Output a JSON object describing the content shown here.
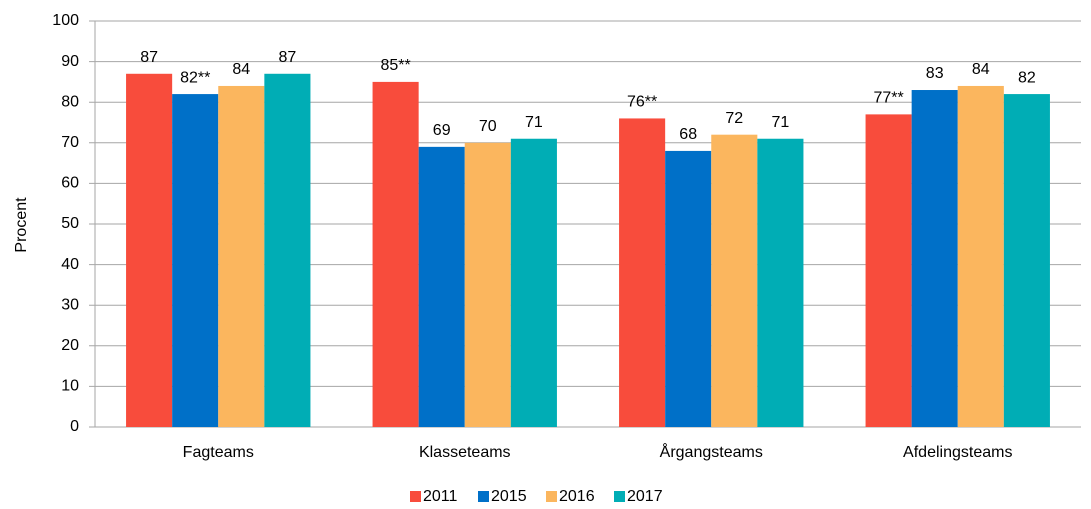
{
  "chart_data": {
    "type": "bar",
    "ylabel": "Procent",
    "categories": [
      "Fagteams",
      "Klasseteams",
      "Årgangsteams",
      "Afdelingsteams"
    ],
    "series": [
      {
        "name": "2011",
        "color": "#f84c3c",
        "values": [
          87,
          85,
          76,
          77
        ],
        "value_labels": [
          "87",
          "85**",
          "76**",
          "77**"
        ]
      },
      {
        "name": "2015",
        "color": "#0070c8",
        "values": [
          82,
          69,
          68,
          83
        ],
        "value_labels": [
          "82**",
          "69",
          "68",
          "83"
        ]
      },
      {
        "name": "2016",
        "color": "#fbb65e",
        "values": [
          84,
          70,
          72,
          84
        ]
      },
      {
        "name": "2017",
        "color": "#00adb5",
        "values": [
          87,
          71,
          71,
          82
        ]
      }
    ],
    "ylim": [
      0,
      100
    ],
    "yticks": [
      0,
      10,
      20,
      30,
      40,
      50,
      60,
      70,
      80,
      90,
      100
    ],
    "grid": true,
    "legend": "bottom"
  }
}
